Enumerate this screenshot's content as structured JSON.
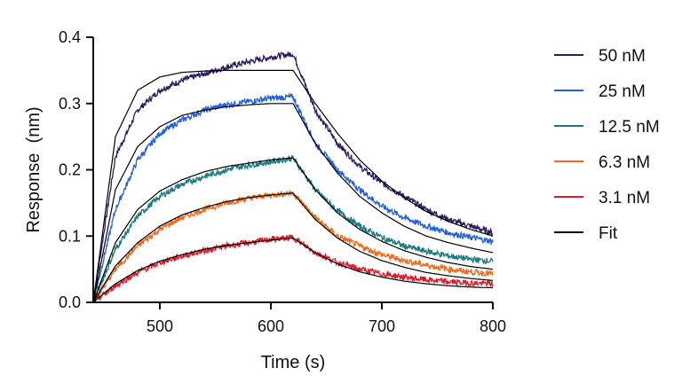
{
  "chart_data": {
    "type": "line",
    "xlabel": "Time (s)",
    "ylabel": "Response  (nm)",
    "xlim": [
      440,
      800
    ],
    "ylim": [
      0.0,
      0.4
    ],
    "xticks": [
      500,
      600,
      700,
      800
    ],
    "yticks": [
      0.0,
      0.1,
      0.2,
      0.3,
      0.4
    ],
    "ytick_labels": [
      "0.0",
      "0.1",
      "0.2",
      "0.3",
      "0.4"
    ],
    "grid": false,
    "legend_position": "right",
    "x": [
      440,
      460,
      480,
      500,
      520,
      540,
      560,
      580,
      600,
      620,
      640,
      660,
      680,
      700,
      720,
      740,
      760,
      780,
      800
    ],
    "series": [
      {
        "name": "50 nM",
        "color": "#2e1a5e",
        "kind": "data",
        "values": [
          0.0,
          0.22,
          0.29,
          0.32,
          0.335,
          0.345,
          0.355,
          0.363,
          0.37,
          0.375,
          0.29,
          0.24,
          0.205,
          0.18,
          0.16,
          0.14,
          0.125,
          0.115,
          0.105
        ]
      },
      {
        "name": "25 nM",
        "color": "#1f5fe0",
        "kind": "data",
        "values": [
          0.0,
          0.14,
          0.215,
          0.255,
          0.275,
          0.29,
          0.298,
          0.303,
          0.308,
          0.31,
          0.24,
          0.2,
          0.17,
          0.145,
          0.128,
          0.115,
          0.105,
          0.098,
          0.092
        ]
      },
      {
        "name": "12.5 nM",
        "color": "#1a7a80",
        "kind": "data",
        "values": [
          0.0,
          0.08,
          0.13,
          0.16,
          0.178,
          0.19,
          0.2,
          0.207,
          0.212,
          0.218,
          0.17,
          0.138,
          0.115,
          0.098,
          0.085,
          0.077,
          0.07,
          0.065,
          0.062
        ]
      },
      {
        "name": "6.3 nM",
        "color": "#f06a1e",
        "kind": "data",
        "values": [
          0.0,
          0.05,
          0.085,
          0.11,
          0.128,
          0.14,
          0.15,
          0.157,
          0.162,
          0.165,
          0.128,
          0.1,
          0.085,
          0.072,
          0.063,
          0.056,
          0.05,
          0.046,
          0.043
        ]
      },
      {
        "name": "3.1 nM",
        "color": "#e01a24",
        "kind": "data",
        "values": [
          0.0,
          0.025,
          0.045,
          0.06,
          0.07,
          0.078,
          0.085,
          0.09,
          0.095,
          0.098,
          0.075,
          0.06,
          0.05,
          0.043,
          0.038,
          0.034,
          0.031,
          0.029,
          0.028
        ]
      },
      {
        "name": "Fit",
        "color": "#000000",
        "kind": "fit",
        "curves": [
          [
            0.0,
            0.25,
            0.32,
            0.34,
            0.347,
            0.349,
            0.35,
            0.35,
            0.35,
            0.35,
            0.3,
            0.255,
            0.215,
            0.183,
            0.158,
            0.137,
            0.122,
            0.11,
            0.1
          ],
          [
            0.0,
            0.17,
            0.235,
            0.265,
            0.282,
            0.29,
            0.295,
            0.298,
            0.3,
            0.3,
            0.24,
            0.195,
            0.16,
            0.135,
            0.115,
            0.1,
            0.09,
            0.082,
            0.075
          ],
          [
            0.0,
            0.09,
            0.14,
            0.168,
            0.185,
            0.197,
            0.205,
            0.21,
            0.215,
            0.218,
            0.17,
            0.135,
            0.11,
            0.092,
            0.078,
            0.068,
            0.06,
            0.054,
            0.05
          ],
          [
            0.0,
            0.055,
            0.09,
            0.115,
            0.132,
            0.143,
            0.152,
            0.158,
            0.162,
            0.165,
            0.125,
            0.097,
            0.077,
            0.063,
            0.053,
            0.045,
            0.04,
            0.036,
            0.033
          ],
          [
            0.0,
            0.028,
            0.048,
            0.062,
            0.072,
            0.08,
            0.086,
            0.09,
            0.094,
            0.097,
            0.075,
            0.058,
            0.046,
            0.038,
            0.032,
            0.028,
            0.025,
            0.023,
            0.022
          ]
        ]
      }
    ]
  }
}
